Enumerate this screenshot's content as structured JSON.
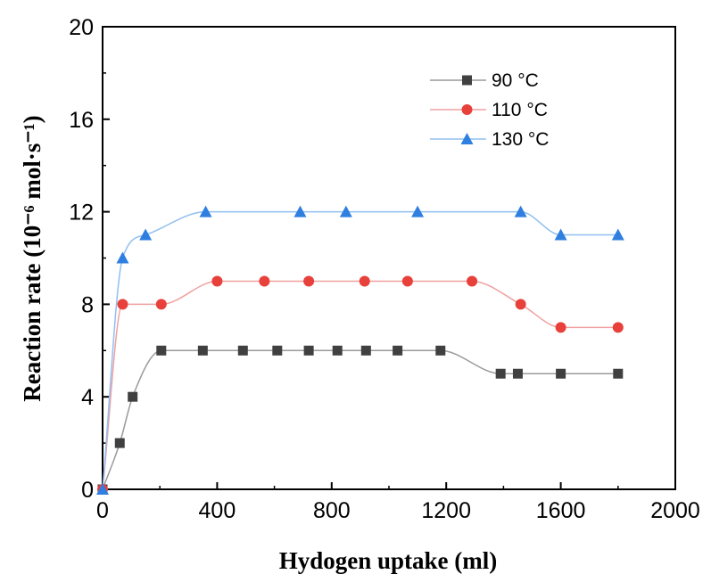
{
  "chart_data": {
    "type": "scatter",
    "xlabel": "Hydogen uptake (ml)",
    "ylabel": "Reaction rate (10⁻⁶ mol·s⁻¹)",
    "xlim": [
      0,
      2000
    ],
    "ylim": [
      0,
      20
    ],
    "xticks": [
      "0",
      "400",
      "800",
      "1200",
      "1600",
      "2000"
    ],
    "yticks": [
      "0",
      "4",
      "8",
      "12",
      "16",
      "20"
    ],
    "grid": false,
    "legend_position": "top-right",
    "series": [
      {
        "name": "90 °C",
        "marker": "square",
        "color": "#404040",
        "line_color": "#9a9a9a",
        "x": [
          0,
          60,
          105,
          205,
          350,
          490,
          610,
          720,
          820,
          920,
          1030,
          1180,
          1390,
          1450,
          1600,
          1800
        ],
        "y": [
          0,
          2,
          4,
          6,
          6,
          6,
          6,
          6,
          6,
          6,
          6,
          6,
          5,
          5,
          5,
          5
        ]
      },
      {
        "name": "110 °C",
        "marker": "circle",
        "color": "#e8403a",
        "line_color": "#f0a0a0",
        "x": [
          0,
          70,
          205,
          400,
          565,
          720,
          915,
          1065,
          1290,
          1460,
          1600,
          1800
        ],
        "y": [
          0,
          8,
          8,
          9,
          9,
          9,
          9,
          9,
          9,
          8,
          7,
          7
        ]
      },
      {
        "name": "130 °C",
        "marker": "triangle",
        "color": "#2f7fe0",
        "line_color": "#90bff0",
        "x": [
          0,
          70,
          150,
          360,
          690,
          850,
          1100,
          1460,
          1600,
          1800
        ],
        "y": [
          0,
          10,
          11,
          12,
          12,
          12,
          12,
          12,
          11,
          11
        ]
      }
    ]
  }
}
